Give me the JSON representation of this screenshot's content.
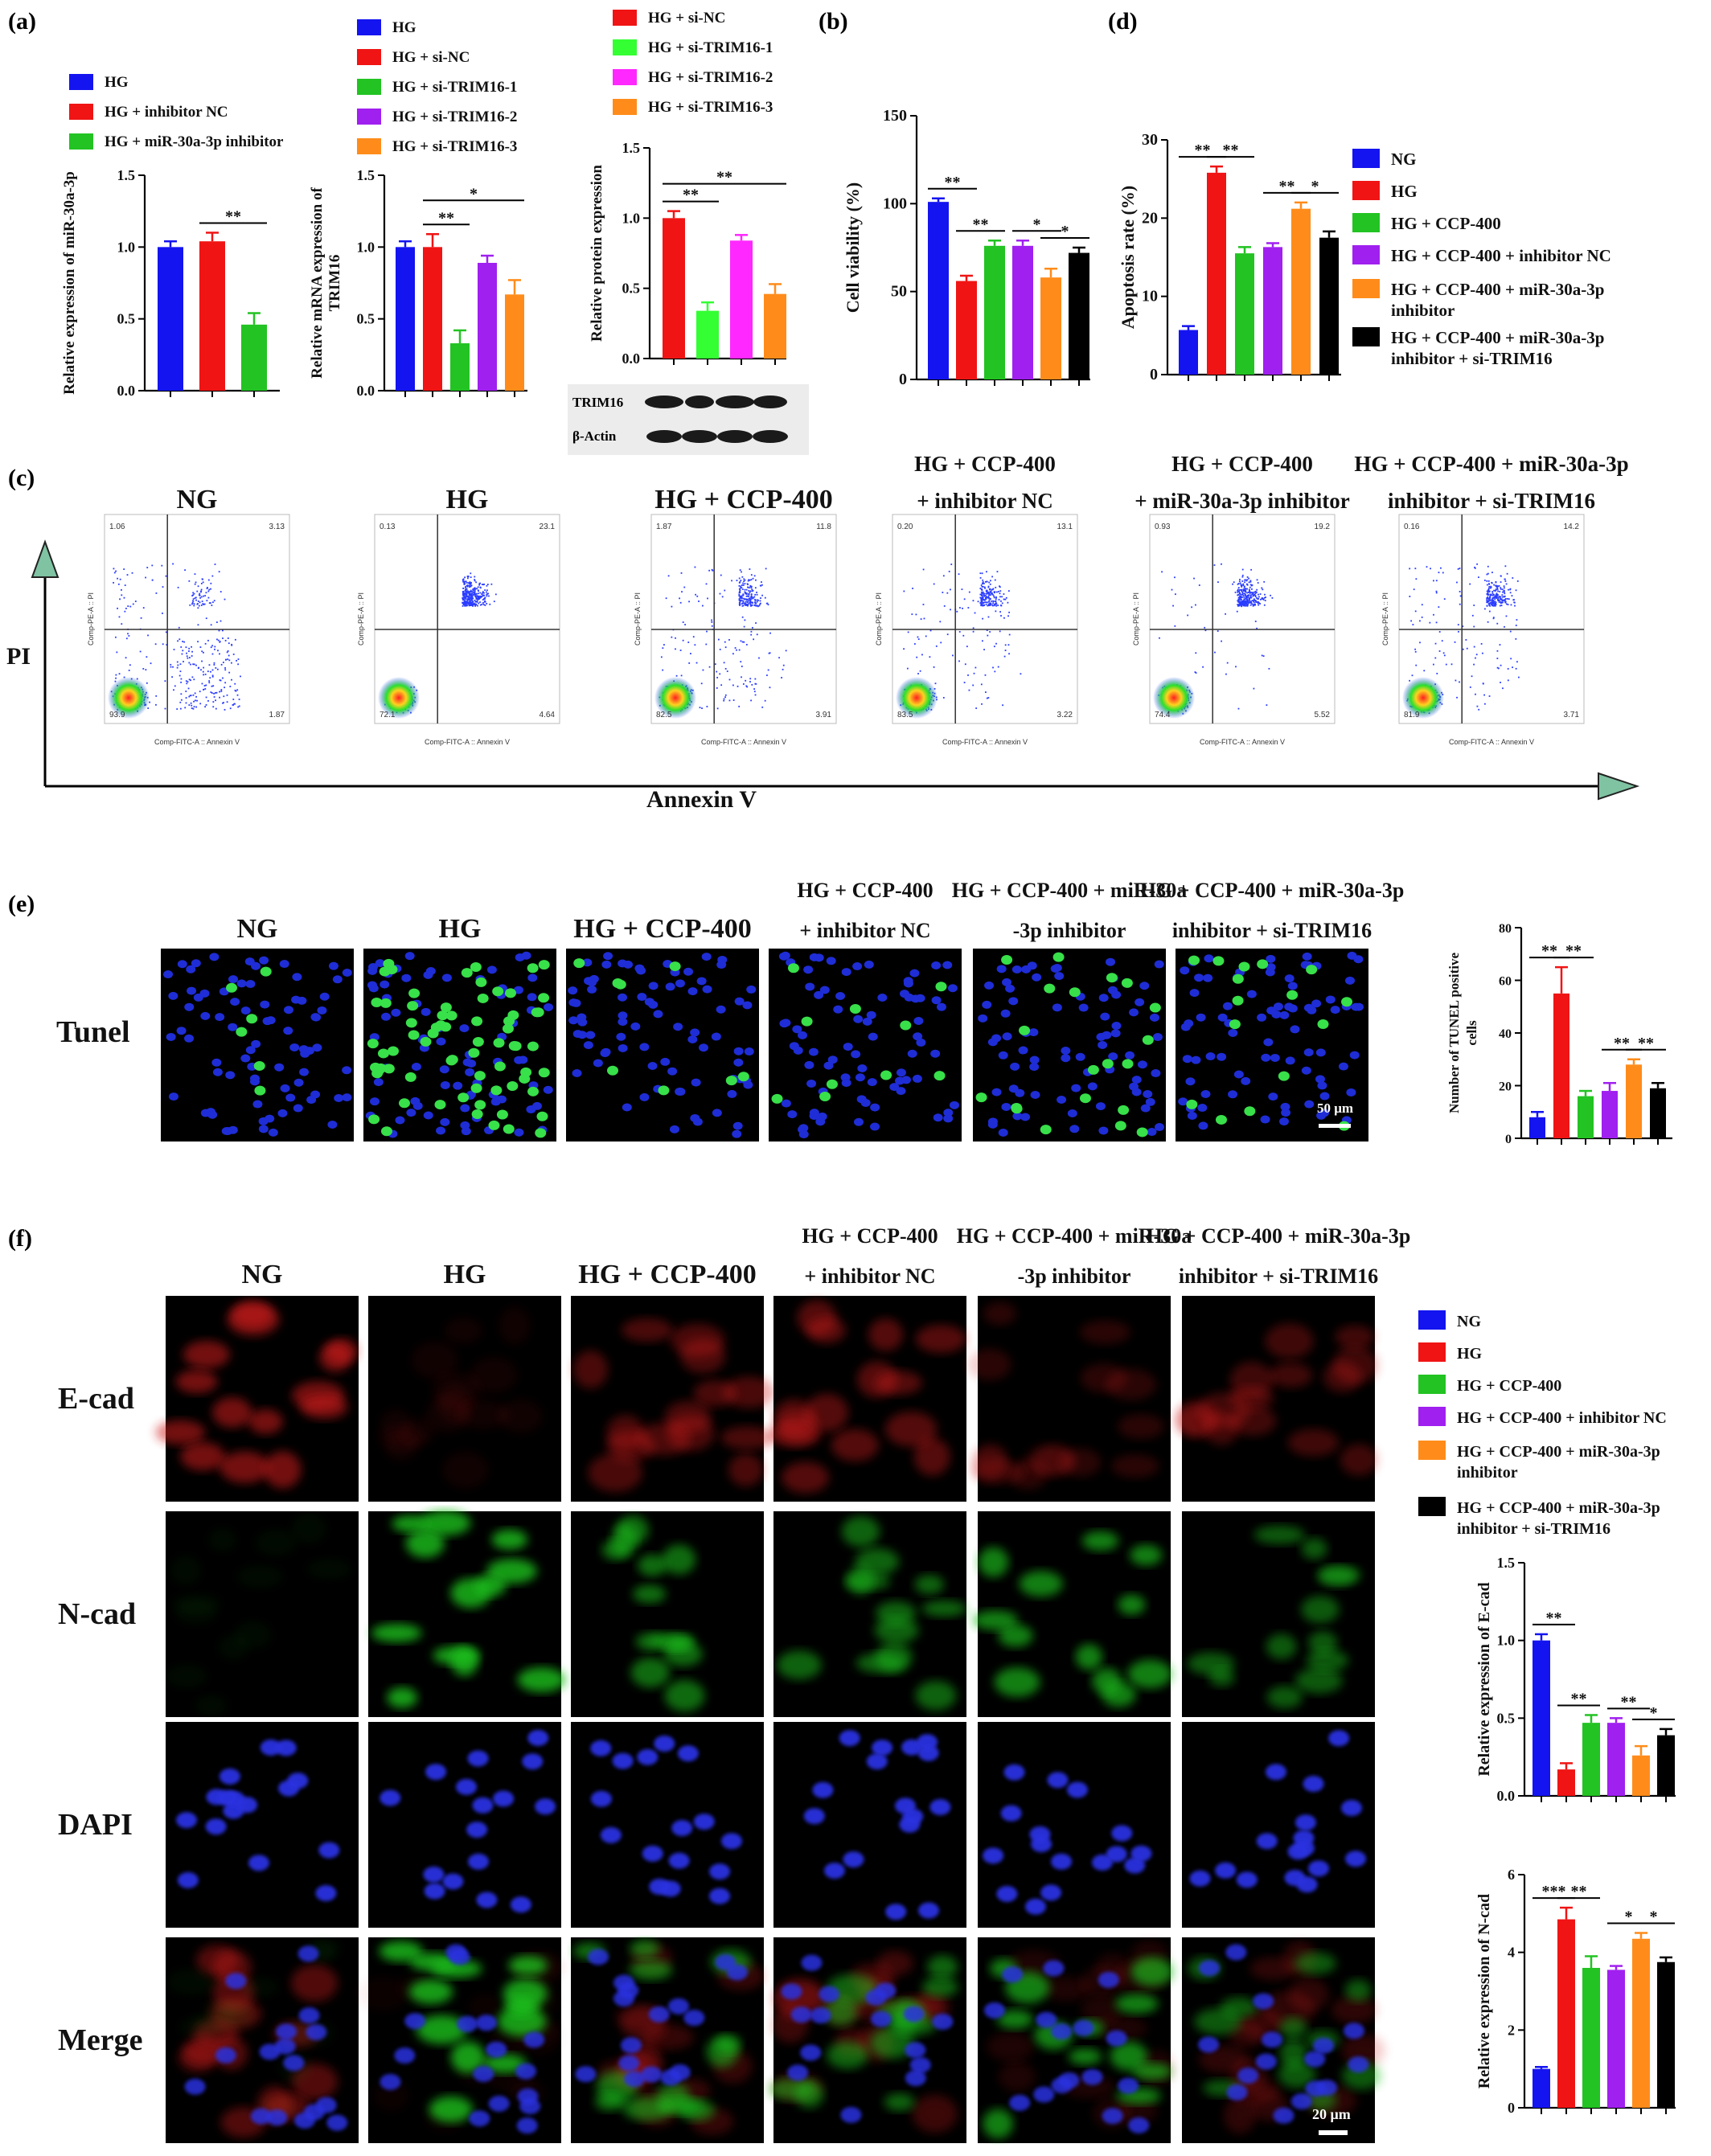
{
  "panels": {
    "a": "(a)",
    "b": "(b)",
    "c": "(c)",
    "d": "(d)",
    "e": "(e)",
    "f": "(f)"
  },
  "colors": {
    "blue": "#1414f0",
    "red": "#f01414",
    "green": "#22c322",
    "purple": "#a020f0",
    "orange": "#ff8c1a",
    "black": "#000000",
    "magenta": "#ff28ff",
    "lime": "#33ff33"
  },
  "legend_a1": [
    "HG",
    "HG + inhibitor NC",
    "HG + miR-30a-3p inhibitor"
  ],
  "legend_a2": [
    "HG",
    "HG + si-NC",
    "HG + si-TRIM16-1",
    "HG + si-TRIM16-2",
    "HG + si-TRIM16-3"
  ],
  "legend_a3": [
    "HG + si-NC",
    "HG + si-TRIM16-1",
    "HG + si-TRIM16-2",
    "HG + si-TRIM16-3"
  ],
  "legend_d": [
    "NG",
    "HG",
    "HG + CCP-400",
    "HG + CCP-400 + inhibitor NC",
    "HG + CCP-400 + miR-30a-3p",
    "inhibitor",
    "HG + CCP-400 + miR-30a-3p",
    "inhibitor + si-TRIM16"
  ],
  "legend_f": [
    "NG",
    "HG",
    "HG + CCP-400",
    "HG + CCP-400 + inhibitor NC",
    "HG + CCP-400 + miR-30a-3p",
    "inhibitor",
    "HG + CCP-400 + miR-30a-3p",
    "inhibitor + si-TRIM16"
  ],
  "blot": {
    "row1": "TRIM16",
    "row2": "β-Actin"
  },
  "flow": {
    "titles": [
      "NG",
      "HG",
      "HG + CCP-400",
      "HG + CCP-400",
      "HG + CCP-400",
      "HG + CCP-400 + miR-30a-3p"
    ],
    "titles2": [
      "",
      "",
      "",
      "+ inhibitor NC",
      "+ miR-30a-3p inhibitor",
      "inhibitor + si-TRIM16"
    ],
    "ylabel": "PI",
    "xlabel": "Annexin V",
    "plot_ylabel": "Comp-PE-A :: PI",
    "plot_xlabel": "Comp-FITC-A :: Annexin V",
    "quad": [
      [
        "1.06",
        "3.13",
        "1.87",
        "93.9"
      ],
      [
        "0.13",
        "23.1",
        "4.64",
        "72.1"
      ],
      [
        "1.87",
        "11.8",
        "3.91",
        "82.5"
      ],
      [
        "0.20",
        "13.1",
        "3.22",
        "83.5"
      ],
      [
        "0.93",
        "19.2",
        "5.52",
        "74.4"
      ],
      [
        "0.16",
        "14.2",
        "3.71",
        "81.9"
      ]
    ]
  },
  "tunel": {
    "row_label": "Tunel",
    "titles": [
      "NG",
      "HG",
      "HG + CCP-400",
      "HG + CCP-400",
      "HG + CCP-400 + miR-30a",
      "HG + CCP-400 + miR-30a-3p"
    ],
    "titles2": [
      "",
      "",
      "",
      "+ inhibitor NC",
      "-3p inhibitor",
      "inhibitor + si-TRIM16"
    ],
    "scale": "50 μm"
  },
  "if": {
    "rows": [
      "E-cad",
      "N-cad",
      "DAPI",
      "Merge"
    ],
    "titles": [
      "NG",
      "HG",
      "HG + CCP-400",
      "HG + CCP-400",
      "HG + CCP-400 + miR-30a",
      "HG + CCP-400 + miR-30a-3p"
    ],
    "titles2": [
      "",
      "",
      "",
      "+ inhibitor NC",
      "-3p inhibitor",
      "inhibitor + si-TRIM16"
    ],
    "scale": "20 μm"
  },
  "chart_data": [
    {
      "id": "a1",
      "type": "bar",
      "ylabel": "Relative expression of miR-30a-3p",
      "ylim": [
        0,
        1.5
      ],
      "ticks": [
        "0.0",
        "0.5",
        "1.0",
        "1.5"
      ],
      "values": [
        1.0,
        1.04,
        0.46
      ],
      "errors": [
        0.04,
        0.06,
        0.08
      ],
      "colors": [
        "blue",
        "red",
        "green"
      ],
      "sig": [
        {
          "from": 1,
          "to": 2,
          "label": "**"
        }
      ]
    },
    {
      "id": "a2",
      "type": "bar",
      "ylabel": "Relative mRNA expression of TRIM16",
      "ylim": [
        0,
        1.5
      ],
      "ticks": [
        "0.0",
        "0.5",
        "1.0",
        "1.5"
      ],
      "values": [
        1.0,
        1.0,
        0.33,
        0.89,
        0.67
      ],
      "errors": [
        0.04,
        0.09,
        0.09,
        0.05,
        0.1
      ],
      "colors": [
        "blue",
        "red",
        "green",
        "purple",
        "orange"
      ],
      "sig": [
        {
          "from": 1,
          "to": 2,
          "label": "**"
        },
        {
          "from": 1,
          "to": 4,
          "label": "*"
        }
      ]
    },
    {
      "id": "a3",
      "type": "bar",
      "ylabel": "Relative protein expression",
      "ylim": [
        0,
        1.5
      ],
      "ticks": [
        "0.0",
        "0.5",
        "1.0",
        "1.5"
      ],
      "values": [
        1.0,
        0.34,
        0.84,
        0.46
      ],
      "errors": [
        0.05,
        0.06,
        0.04,
        0.07
      ],
      "colors": [
        "red",
        "lime",
        "magenta",
        "orange"
      ],
      "sig": [
        {
          "from": 0,
          "to": 1,
          "label": "**"
        },
        {
          "from": 0,
          "to": 3,
          "label": "**"
        }
      ]
    },
    {
      "id": "b",
      "type": "bar",
      "ylabel": "Cell viability (%)",
      "ylim": [
        0,
        150
      ],
      "ticks": [
        "0",
        "50",
        "100",
        "150"
      ],
      "values": [
        101,
        56,
        76,
        76,
        58,
        72
      ],
      "errors": [
        2,
        3,
        3,
        3,
        5,
        3
      ],
      "colors": [
        "blue",
        "red",
        "green",
        "purple",
        "orange",
        "black"
      ],
      "sig": [
        {
          "from": 0,
          "to": 1,
          "label": "**"
        },
        {
          "from": 1,
          "to": 2,
          "label": "**"
        },
        {
          "from": 3,
          "to": 4,
          "label": "*"
        },
        {
          "from": 4,
          "to": 5,
          "label": "*"
        }
      ]
    },
    {
      "id": "d",
      "type": "bar",
      "ylabel": "Apoptosis rate (%)",
      "ylim": [
        0,
        30
      ],
      "ticks": [
        "0",
        "10",
        "20",
        "30"
      ],
      "values": [
        5.7,
        25.8,
        15.5,
        16.3,
        21.2,
        17.5
      ],
      "errors": [
        0.5,
        0.8,
        0.8,
        0.5,
        0.8,
        0.8
      ],
      "colors": [
        "blue",
        "red",
        "green",
        "purple",
        "orange",
        "black"
      ],
      "sig": [
        {
          "from": 0,
          "to": 1,
          "label": "**"
        },
        {
          "from": 1,
          "to": 2,
          "label": "**"
        },
        {
          "from": 3,
          "to": 4,
          "label": "**"
        },
        {
          "from": 4,
          "to": 5,
          "label": "*"
        }
      ]
    },
    {
      "id": "e",
      "type": "bar",
      "ylabel": "Number of TUNEL positive cells",
      "ylim": [
        0,
        80
      ],
      "ticks": [
        "0",
        "20",
        "40",
        "60",
        "80"
      ],
      "values": [
        8,
        55,
        16,
        18,
        28,
        19
      ],
      "errors": [
        2,
        10,
        2,
        3,
        2,
        2
      ],
      "colors": [
        "blue",
        "red",
        "green",
        "purple",
        "orange",
        "black"
      ],
      "sig": [
        {
          "from": 0,
          "to": 1,
          "label": "**"
        },
        {
          "from": 1,
          "to": 2,
          "label": "**"
        },
        {
          "from": 3,
          "to": 4,
          "label": "**"
        },
        {
          "from": 4,
          "to": 5,
          "label": "**"
        }
      ]
    },
    {
      "id": "f1",
      "type": "bar",
      "ylabel": "Relative expression of E-cad",
      "ylim": [
        0,
        1.5
      ],
      "ticks": [
        "0.0",
        "0.5",
        "1.0",
        "1.5"
      ],
      "values": [
        1.0,
        0.17,
        0.47,
        0.47,
        0.26,
        0.39
      ],
      "errors": [
        0.04,
        0.04,
        0.05,
        0.03,
        0.06,
        0.04
      ],
      "colors": [
        "blue",
        "red",
        "green",
        "purple",
        "orange",
        "black"
      ],
      "sig": [
        {
          "from": 0,
          "to": 1,
          "label": "**"
        },
        {
          "from": 1,
          "to": 2,
          "label": "**"
        },
        {
          "from": 3,
          "to": 4,
          "label": "**"
        },
        {
          "from": 4,
          "to": 5,
          "label": "*"
        }
      ]
    },
    {
      "id": "f2",
      "type": "bar",
      "ylabel": "Relative expression of N-cad",
      "ylim": [
        0,
        6
      ],
      "ticks": [
        "0",
        "2",
        "4",
        "6"
      ],
      "values": [
        1.0,
        4.85,
        3.6,
        3.55,
        4.35,
        3.75
      ],
      "errors": [
        0.05,
        0.3,
        0.3,
        0.1,
        0.15,
        0.12
      ],
      "colors": [
        "blue",
        "red",
        "green",
        "purple",
        "orange",
        "black"
      ],
      "sig": [
        {
          "from": 0,
          "to": 1,
          "label": "***"
        },
        {
          "from": 1,
          "to": 2,
          "label": "**"
        },
        {
          "from": 3,
          "to": 4,
          "label": "*"
        },
        {
          "from": 4,
          "to": 5,
          "label": "*"
        }
      ]
    }
  ]
}
